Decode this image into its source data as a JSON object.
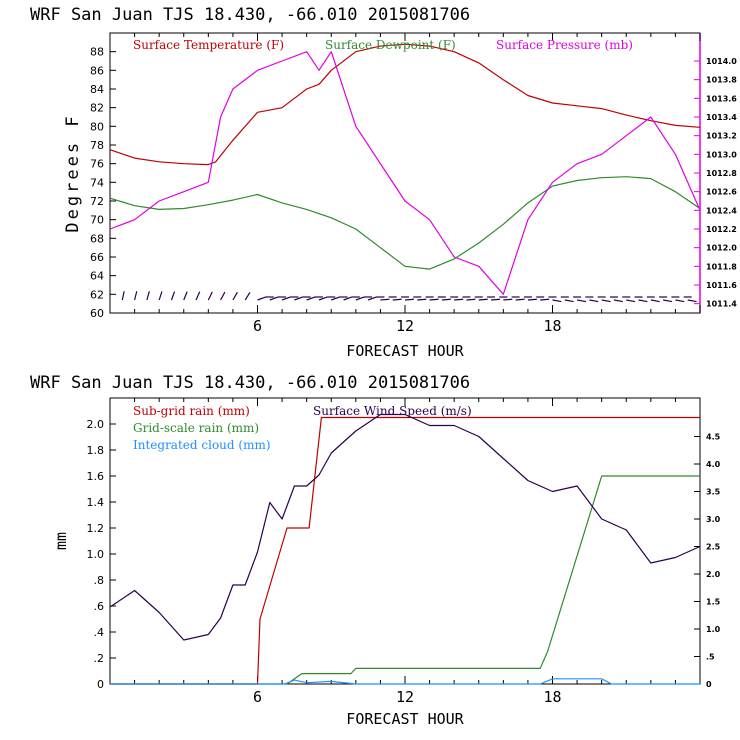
{
  "chart_data": [
    {
      "type": "line",
      "title": "WRF  San Juan TJS  18.430, -66.010  2015081706",
      "xlabel": "FORECAST HOUR",
      "ylabel": "Degrees F",
      "xlim": [
        0,
        24
      ],
      "ylim": [
        60,
        90
      ],
      "xticks": [
        "6",
        "12",
        "18"
      ],
      "yticks": [
        "60",
        "62",
        "64",
        "66",
        "68",
        "70",
        "72",
        "74",
        "76",
        "78",
        "80",
        "82",
        "84",
        "86",
        "88"
      ],
      "y2lim": [
        1011.3,
        1014.3
      ],
      "y2ticks": [
        "1011.4",
        "1011.6",
        "1011.8",
        "1012.0",
        "1012.2",
        "1012.4",
        "1012.6",
        "1012.8",
        "1013.0",
        "1013.2",
        "1013.4",
        "1013.6",
        "1013.8",
        "1014.0"
      ],
      "y2color": "#e000e0",
      "series": [
        {
          "name": "Surface Temperature (F)",
          "color": "#c00000",
          "axis": "left",
          "x": [
            0,
            1,
            2,
            3,
            4,
            4.3,
            5,
            6,
            7,
            7.5,
            8,
            8.5,
            9,
            10,
            11,
            12,
            13,
            14,
            15,
            16,
            17,
            18,
            19,
            20,
            21,
            22,
            23,
            24
          ],
          "values": [
            77.5,
            76.6,
            76.2,
            76.0,
            75.9,
            76.2,
            78.5,
            81.5,
            82.0,
            83.0,
            84.0,
            84.5,
            86.0,
            88.0,
            88.6,
            88.8,
            88.6,
            88.0,
            86.8,
            85.0,
            83.3,
            82.5,
            82.2,
            81.9,
            81.2,
            80.6,
            80.1,
            79.9
          ]
        },
        {
          "name": "Surface Dewpoint (F)",
          "color": "#2e8b2e",
          "axis": "left",
          "x": [
            0,
            1,
            2,
            3,
            4,
            5,
            6,
            7,
            8,
            9,
            10,
            11,
            12,
            13,
            14,
            15,
            16,
            17,
            18,
            19,
            20,
            21,
            22,
            23,
            24
          ],
          "values": [
            72.3,
            71.5,
            71.1,
            71.2,
            71.6,
            72.1,
            72.7,
            71.8,
            71.1,
            70.2,
            69.0,
            67.0,
            65.0,
            64.7,
            65.8,
            67.5,
            69.5,
            71.8,
            73.6,
            74.2,
            74.5,
            74.6,
            74.4,
            73.0,
            71.2
          ]
        },
        {
          "name": "Surface Pressure (mb)",
          "color": "#e000e0",
          "axis": "right",
          "x": [
            0,
            1,
            2,
            3,
            4,
            4.5,
            5,
            6,
            7,
            8,
            8.5,
            9,
            10,
            11,
            12,
            13,
            14,
            15,
            16,
            17,
            18,
            19,
            20,
            21,
            22,
            23,
            24
          ],
          "values": [
            1012.2,
            1012.3,
            1012.5,
            1012.6,
            1012.7,
            1013.4,
            1013.7,
            1013.9,
            1014.0,
            1014.1,
            1013.9,
            1014.1,
            1013.3,
            1012.9,
            1012.5,
            1012.3,
            1011.9,
            1011.8,
            1011.5,
            1012.3,
            1012.7,
            1012.9,
            1013.0,
            1013.2,
            1013.4,
            1013.0,
            1012.4
          ]
        }
      ],
      "wind_barbs_color": "#2a004a",
      "legend": [
        "Surface Temperature (F)",
        "Surface Dewpoint (F)",
        "Surface Pressure (mb)"
      ],
      "legend_position": "top-left",
      "grid": false
    },
    {
      "type": "line",
      "title": "WRF  San Juan TJS  18.430, -66.010  2015081706",
      "xlabel": "FORECAST HOUR",
      "ylabel": "mm",
      "xlim": [
        0,
        24
      ],
      "ylim": [
        0,
        2.2
      ],
      "xticks": [
        "6",
        "12",
        "18"
      ],
      "yticks": [
        "0",
        ".2",
        ".4",
        ".6",
        ".8",
        "1.0",
        "1.2",
        "1.4",
        "1.6",
        "1.8",
        "2.0"
      ],
      "y2lim": [
        0,
        5.2
      ],
      "y2ticks": [
        "0",
        ".5",
        "1.0",
        "1.5",
        "2.0",
        "2.5",
        "3.0",
        "3.5",
        "4.0",
        "4.5"
      ],
      "series": [
        {
          "name": "Sub-grid rain (mm)",
          "color": "#c00000",
          "axis": "left",
          "x": [
            0,
            6,
            6.1,
            7.2,
            8.1,
            8.6,
            24
          ],
          "values": [
            0,
            0,
            0.5,
            1.2,
            1.2,
            2.05,
            2.05
          ]
        },
        {
          "name": "Grid-scale rain (mm)",
          "color": "#2e8b2e",
          "axis": "left",
          "x": [
            0,
            7.2,
            7.8,
            9.8,
            10,
            17.5,
            17.8,
            20,
            24
          ],
          "values": [
            0,
            0,
            0.08,
            0.08,
            0.12,
            0.12,
            0.25,
            1.6,
            1.6
          ]
        },
        {
          "name": "Integrated cloud (mm)",
          "color": "#1e90ff",
          "axis": "left",
          "x": [
            0,
            7.1,
            7.5,
            8,
            9,
            10,
            11,
            12,
            17.5,
            18,
            19,
            20,
            20.4,
            24
          ],
          "values": [
            0,
            0,
            0.03,
            0.01,
            0.02,
            0.0,
            0.0,
            0.0,
            0.0,
            0.04,
            0.04,
            0.04,
            0.0,
            0
          ]
        },
        {
          "name": "Surface Wind Speed (m/s)",
          "color": "#2a004a",
          "axis": "right",
          "x": [
            0,
            1,
            2,
            3,
            4,
            4.5,
            5,
            5.5,
            6,
            6.5,
            7,
            7.5,
            8,
            8.5,
            9,
            9.5,
            10,
            11,
            12,
            13,
            14,
            15,
            16,
            17,
            18,
            19,
            20,
            21,
            22,
            23,
            24
          ],
          "values": [
            1.4,
            1.7,
            1.3,
            0.8,
            0.9,
            1.2,
            1.8,
            1.8,
            2.4,
            3.3,
            3.0,
            3.6,
            3.6,
            3.8,
            4.2,
            4.4,
            4.6,
            4.9,
            4.9,
            4.7,
            4.7,
            4.5,
            4.1,
            3.7,
            3.5,
            3.6,
            3.0,
            2.8,
            2.2,
            2.3,
            2.5
          ]
        }
      ],
      "legend": [
        "Sub-grid rain (mm)",
        "Surface Wind Speed (m/s)",
        "Grid-scale rain (mm)",
        "Integrated cloud (mm)"
      ],
      "legend_position": "top-left",
      "grid": false
    }
  ]
}
